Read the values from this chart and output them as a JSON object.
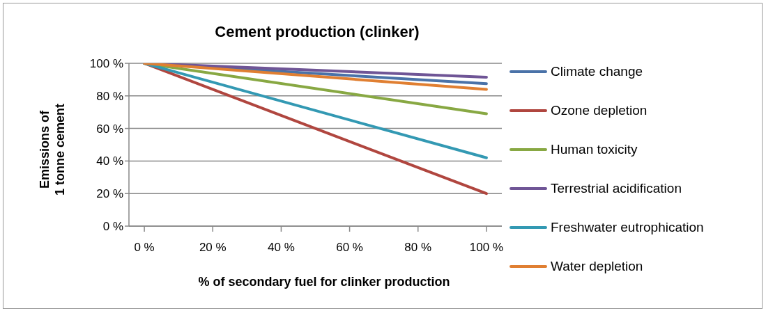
{
  "chart_data": {
    "type": "line",
    "title": "Cement production (clinker)",
    "xlabel": "% of secondary fuel for clinker production",
    "ylabel": "Emissions of\n1 tonne cement",
    "x": [
      0,
      100
    ],
    "xlim": [
      -4.5,
      104.5
    ],
    "xticks": [
      {
        "value": 0,
        "label": "0 %"
      },
      {
        "value": 20,
        "label": "20 %"
      },
      {
        "value": 40,
        "label": "40 %"
      },
      {
        "value": 60,
        "label": "60 %"
      },
      {
        "value": 80,
        "label": "80 %"
      },
      {
        "value": 100,
        "label": "100 %"
      }
    ],
    "ylim": [
      0,
      100
    ],
    "yticks": [
      {
        "value": 0,
        "label": "0 %"
      },
      {
        "value": 20,
        "label": "20 %"
      },
      {
        "value": 40,
        "label": "40 %"
      },
      {
        "value": 60,
        "label": "60 %"
      },
      {
        "value": 80,
        "label": "80 %"
      },
      {
        "value": 100,
        "label": "100 %"
      }
    ],
    "grid": "y",
    "legend": "right",
    "marker": "none",
    "line_style": "solid",
    "series": [
      {
        "name": "Climate change",
        "color": "#4a72a8",
        "values": [
          100,
          87.5
        ]
      },
      {
        "name": "Ozone depletion",
        "color": "#b0463f",
        "values": [
          100,
          20
        ]
      },
      {
        "name": "Human toxicity",
        "color": "#88a843",
        "values": [
          100,
          69
        ]
      },
      {
        "name": "Terrestrial acidification",
        "color": "#6f5596",
        "values": [
          100,
          91.5
        ]
      },
      {
        "name": "Freshwater eutrophication",
        "color": "#3399b3",
        "values": [
          100,
          42
        ]
      },
      {
        "name": "Water depletion",
        "color": "#e07f32",
        "values": [
          100,
          84
        ]
      }
    ]
  }
}
